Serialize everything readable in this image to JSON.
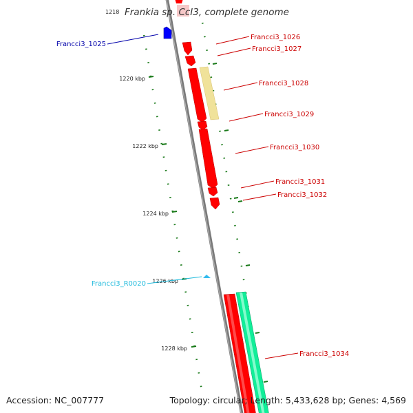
{
  "title": "Frankia sp. CcI3, complete genome",
  "ruler_top_label": "1218",
  "kbp_ticks": [
    "1220 kbp",
    "1222 kbp",
    "1224 kbp",
    "1226 kbp",
    "1228 kbp"
  ],
  "genes": [
    {
      "id": "Francci3_1025",
      "strand": "minus",
      "color": "#0000cc"
    },
    {
      "id": "Francci3_1026",
      "strand": "plus",
      "color": "#cc0000"
    },
    {
      "id": "Francci3_1027",
      "strand": "plus",
      "color": "#cc0000"
    },
    {
      "id": "Francci3_1028",
      "strand": "plus",
      "color": "#cc0000"
    },
    {
      "id": "Francci3_1029",
      "strand": "plus",
      "color": "#cc0000"
    },
    {
      "id": "Francci3_1030",
      "strand": "plus",
      "color": "#cc0000"
    },
    {
      "id": "Francci3_1031",
      "strand": "plus",
      "color": "#cc0000"
    },
    {
      "id": "Francci3_1032",
      "strand": "plus",
      "color": "#cc0000"
    },
    {
      "id": "Francci3_R0020",
      "strand": "minus",
      "color": "#22bbdd"
    },
    {
      "id": "Francci3_1034",
      "strand": "plus",
      "color": "#cc0000"
    }
  ],
  "colors": {
    "backbone": "#8a8a8a",
    "cds": "#ff0000",
    "cds_dark": "#b80000",
    "cds_minus": "#0000ff",
    "rna": "#33bbee",
    "pseudo": "#f0e29a",
    "other_feature": "#11ee99",
    "tick": "#1a7a1a",
    "title_highlight": "#f6c8c8"
  },
  "footer": {
    "accession": "Accession: NC_007777",
    "topology": "Topology: circular; Length: 5,433,628 bp; Genes: 4,569"
  }
}
